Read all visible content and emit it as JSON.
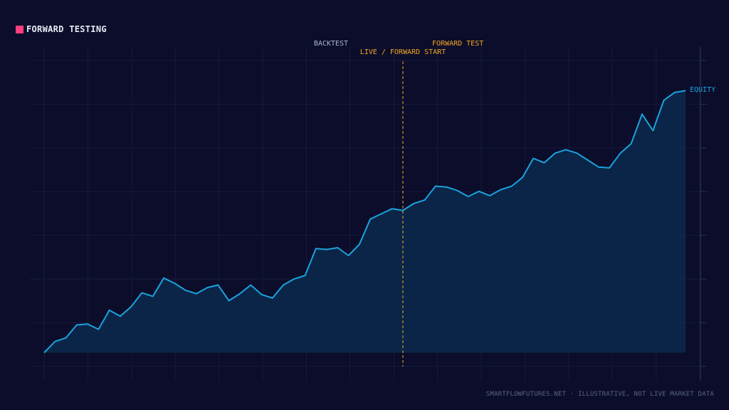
{
  "header": {
    "title": "FORWARD TESTING"
  },
  "footer": {
    "text": "SMARTFLOWFUTURES.NET · ILLUSTRATIVE, NOT LIVE MARKET DATA"
  },
  "colors": {
    "background": "#0b0d2a",
    "title_swatch": "#ff3d7f",
    "equity_line": "#1aa3de",
    "equity_fill": "#0a2a4c",
    "forward_marker": "#f5a623",
    "grid": "#161a3e",
    "backtest_label": "#aab4d6"
  },
  "chart_data": {
    "type": "area",
    "title": "FORWARD TESTING",
    "series": [
      {
        "name": "EQUITY",
        "values": [
          0,
          6.5,
          8.5,
          16,
          16.5,
          13.5,
          24.5,
          21,
          26.5,
          34.5,
          32.5,
          43,
          40,
          36,
          34,
          37.5,
          39,
          30,
          34,
          39,
          33.5,
          31.5,
          39,
          42.5,
          44.5,
          60,
          59.5,
          60.5,
          56,
          62.5,
          77,
          80,
          83,
          82,
          86,
          88,
          96,
          95.5,
          93.5,
          90,
          93,
          90.5,
          94,
          96,
          101,
          112,
          109.5,
          115,
          117,
          115,
          111,
          107,
          106.5,
          115,
          120.5,
          137.5,
          128,
          145.5,
          150,
          151
        ]
      }
    ],
    "forward_start_index": 33,
    "annotations": {
      "backtest": "BACKTEST",
      "forward_test": "FORWARD TEST",
      "forward_start": "LIVE / FORWARD START",
      "series_label": "EQUITY"
    },
    "ylim": [
      -8,
      168
    ],
    "grid": true,
    "axis_labels_shown": false
  }
}
